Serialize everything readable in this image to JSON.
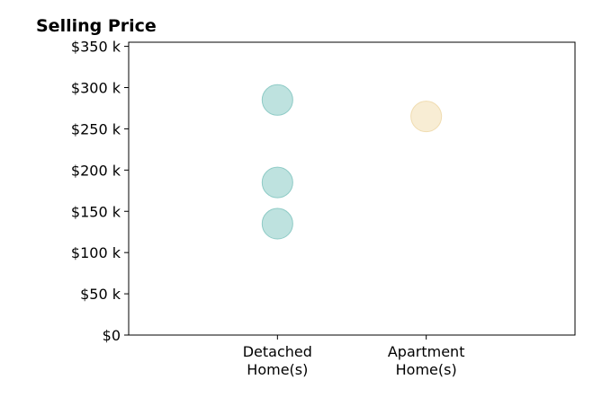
{
  "chart_data": {
    "type": "scatter",
    "title": "Selling Price",
    "xlabel": "",
    "ylabel": "",
    "categories": [
      [
        "Detached",
        "Home(s)"
      ],
      [
        "Apartment",
        "Home(s)"
      ]
    ],
    "x_range": [
      -1,
      2
    ],
    "ylim": [
      0,
      355
    ],
    "y_ticks": [
      {
        "value": 0,
        "label": "$0"
      },
      {
        "value": 50,
        "label": "$50 k"
      },
      {
        "value": 100,
        "label": "$100 k"
      },
      {
        "value": 150,
        "label": "$150 k"
      },
      {
        "value": 200,
        "label": "$200 k"
      },
      {
        "value": 250,
        "label": "$250 k"
      },
      {
        "value": 300,
        "label": "$300 k"
      },
      {
        "value": 350,
        "label": "$350 k"
      }
    ],
    "grid": false,
    "legend": "none",
    "series": [
      {
        "category_index": 0,
        "color": "#a8d8d4",
        "stroke": "#8ecbc6",
        "points": [
          285,
          185,
          135
        ]
      },
      {
        "category_index": 1,
        "color": "#f6e7c6",
        "stroke": "#f0dcb0",
        "points": [
          265
        ]
      }
    ]
  }
}
